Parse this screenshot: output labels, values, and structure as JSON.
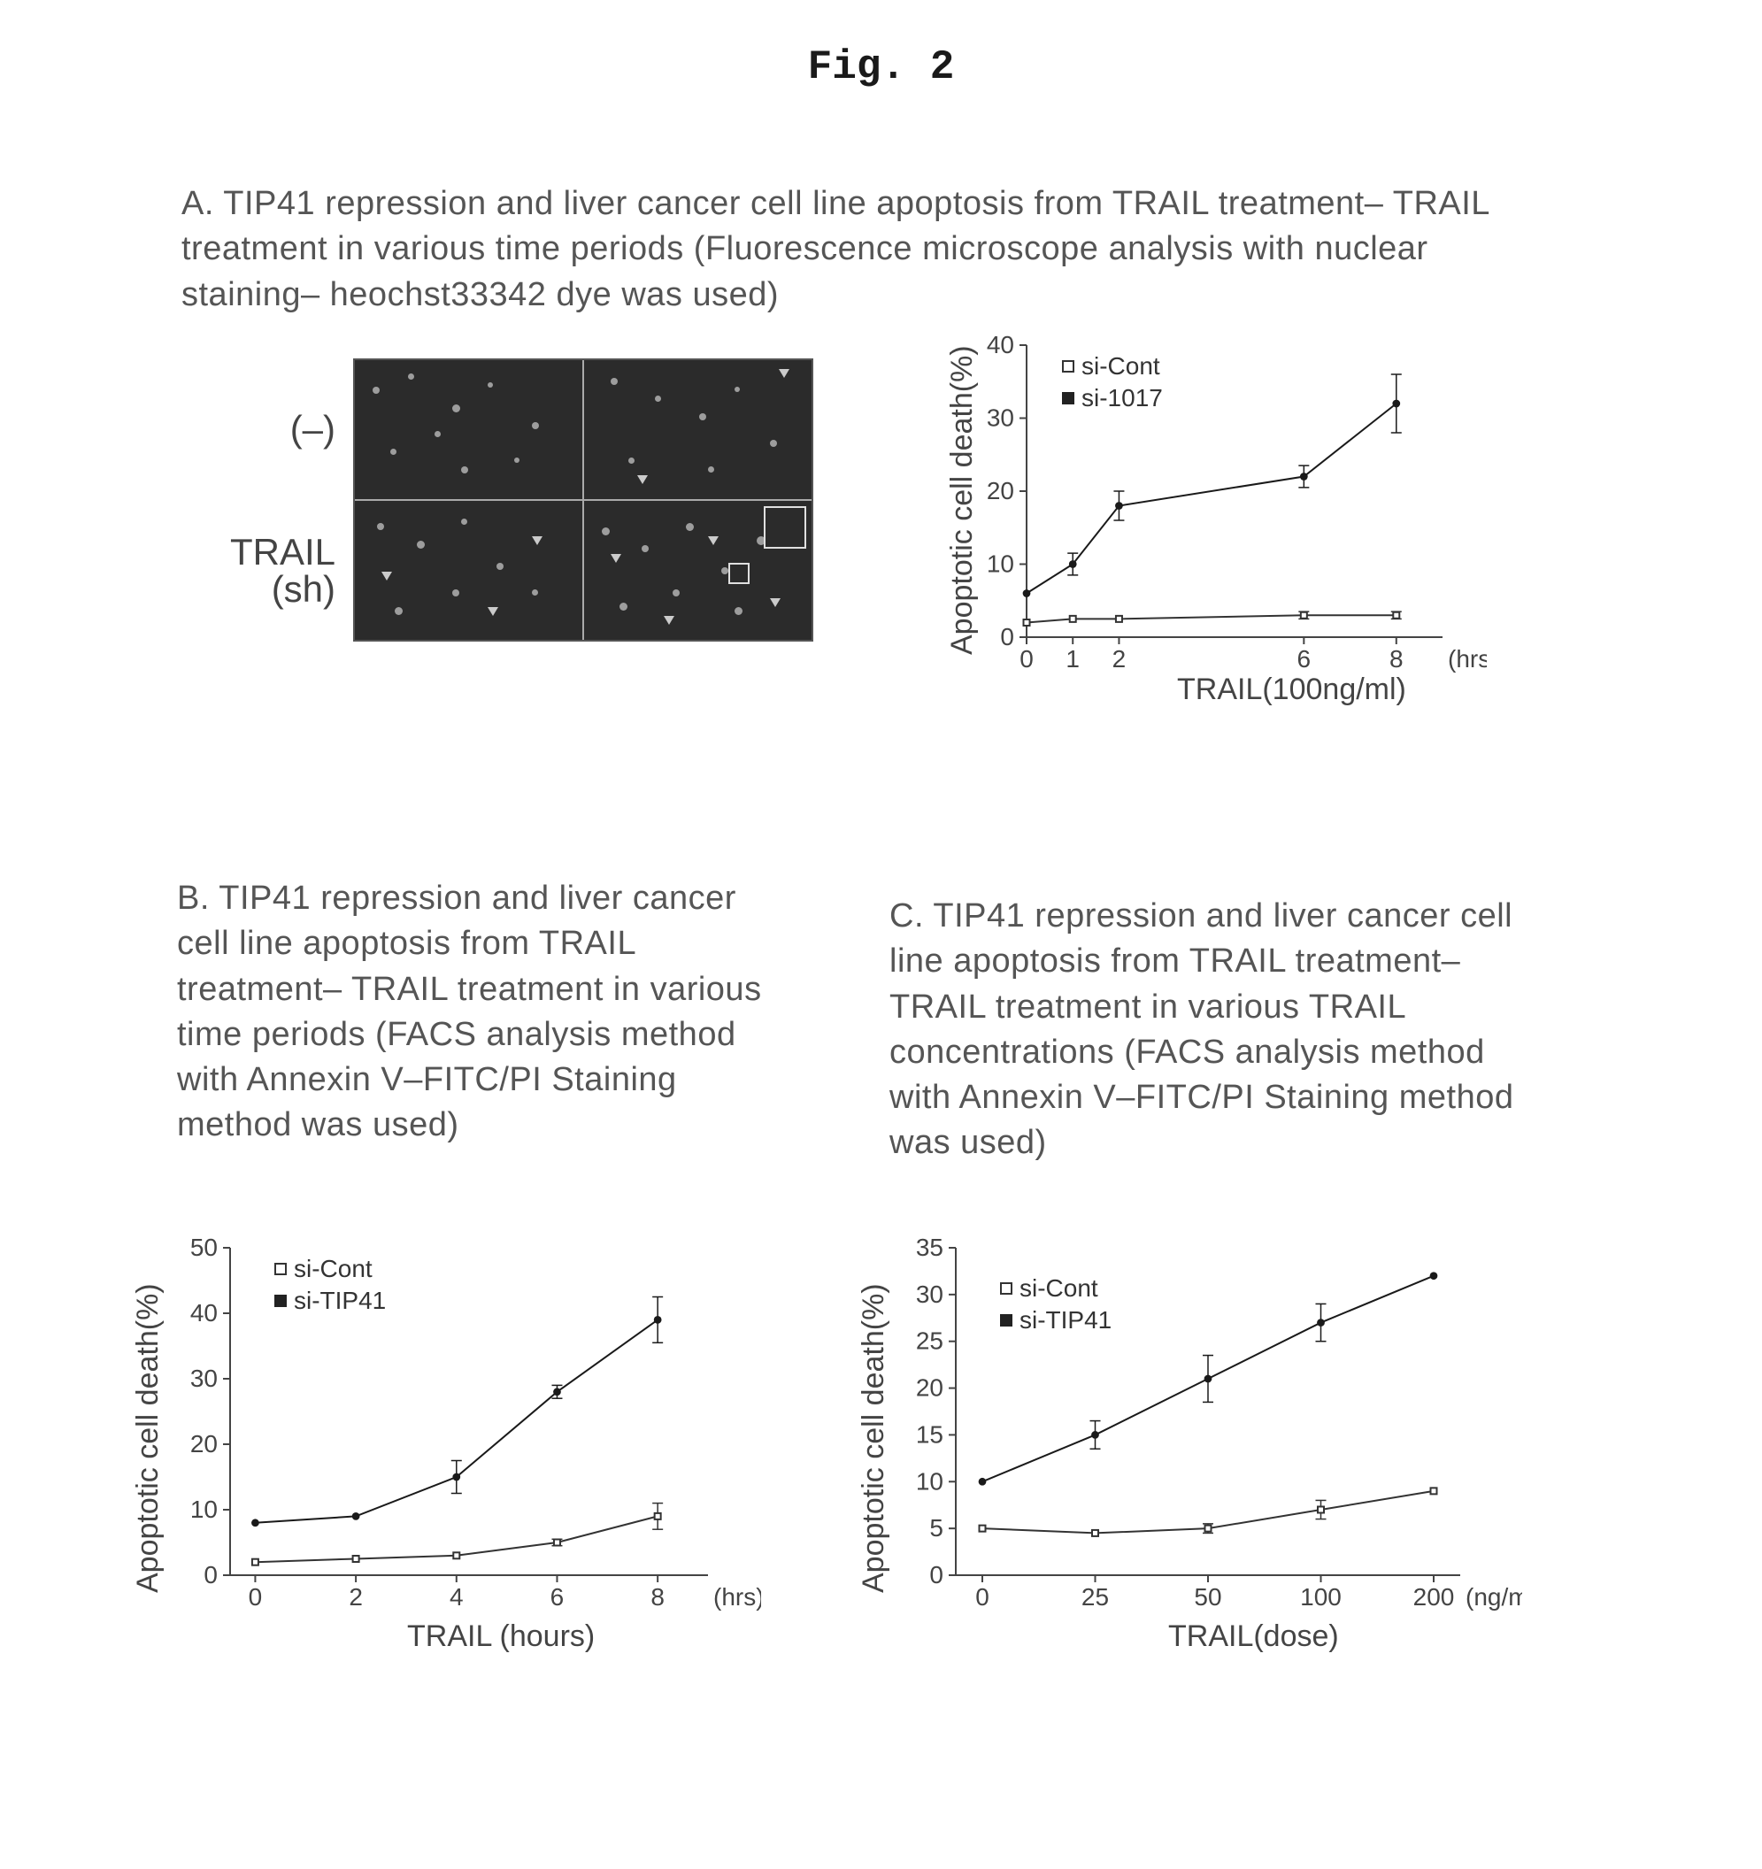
{
  "title": "Fig. 2",
  "panelA": {
    "caption": "A. TIP41 repression and liver cancer cell line apoptosis from TRAIL treatment– TRAIL treatment in various time periods (Fluorescence microscope analysis with nuclear staining– heochst33342 dye was used)",
    "row_label_top": "(–)",
    "row_label_bottom_line1": "TRAIL",
    "row_label_bottom_line2": "(sh)",
    "micro_bg": "#2b2b2b",
    "speck_color": "#cfcfcf",
    "chart": {
      "type": "line",
      "ylabel": "Apoptotic cell death(%)",
      "xlabel": "TRAIL(100ng/ml)",
      "x_unit": "(hrs)",
      "x_ticks": [
        0,
        1,
        2,
        6,
        8
      ],
      "y_ticks": [
        0,
        10,
        20,
        30,
        40
      ],
      "ylim": [
        0,
        40
      ],
      "xlim": [
        0,
        9
      ],
      "series": [
        {
          "name": "si-Cont",
          "marker": "open",
          "color": "#333333",
          "x": [
            0,
            1,
            2,
            6,
            8
          ],
          "y": [
            2,
            2.5,
            2.5,
            3,
            3
          ],
          "err": [
            0,
            0,
            0,
            0.5,
            0.5
          ]
        },
        {
          "name": "si-1017",
          "marker": "filled",
          "color": "#1a1a1a",
          "x": [
            0,
            1,
            2,
            6,
            8
          ],
          "y": [
            6,
            10,
            18,
            22,
            32
          ],
          "err": [
            0,
            1.5,
            2,
            1.5,
            4
          ]
        }
      ],
      "legend_labels": [
        "si-Cont",
        "si-1017"
      ],
      "axis_color": "#444444",
      "grid": false,
      "line_width": 2,
      "marker_size": 7,
      "font_size_ticks": 28,
      "font_size_label": 34
    }
  },
  "panelB": {
    "caption": "B. TIP41 repression and liver cancer cell line apoptosis from TRAIL treatment– TRAIL treatment in various time periods (FACS analysis method with Annexin V–FITC/PI Staining method was used)",
    "chart": {
      "type": "line",
      "ylabel": "Apoptotic cell death(%)",
      "xlabel": "TRAIL (hours)",
      "x_unit": "(hrs)",
      "x_ticks": [
        0,
        2,
        4,
        6,
        8
      ],
      "y_ticks": [
        0,
        10,
        20,
        30,
        40,
        50
      ],
      "ylim": [
        0,
        50
      ],
      "xlim": [
        -0.5,
        9
      ],
      "series": [
        {
          "name": "si-Cont",
          "marker": "open",
          "color": "#333333",
          "x": [
            0,
            2,
            4,
            6,
            8
          ],
          "y": [
            2,
            2.5,
            3,
            5,
            9
          ],
          "err": [
            0,
            0,
            0,
            0.5,
            2
          ]
        },
        {
          "name": "si-TIP41",
          "marker": "filled",
          "color": "#1a1a1a",
          "x": [
            0,
            2,
            4,
            6,
            8
          ],
          "y": [
            8,
            9,
            15,
            28,
            39
          ],
          "err": [
            0,
            0,
            2.5,
            1,
            3.5
          ]
        }
      ],
      "legend_labels": [
        "si-Cont",
        "si-TIP41"
      ],
      "axis_color": "#444444",
      "line_width": 2,
      "marker_size": 7
    }
  },
  "panelC": {
    "caption": "C. TIP41 repression and liver cancer cell line apoptosis from TRAIL treatment– TRAIL treatment in various TRAIL concentrations (FACS analysis method with Annexin V–FITC/PI Staining method was used)",
    "chart": {
      "type": "line",
      "ylabel": "Apoptotic cell death(%)",
      "xlabel": "TRAIL(dose)",
      "x_unit": "(ng/ml)",
      "x_ticks": [
        0,
        25,
        50,
        100,
        200
      ],
      "y_ticks": [
        0,
        5,
        10,
        15,
        20,
        25,
        30,
        35
      ],
      "ylim": [
        0,
        35
      ],
      "xlim_index": [
        0,
        4.5
      ],
      "series": [
        {
          "name": "si-Cont",
          "marker": "open",
          "color": "#333333",
          "x_idx": [
            0,
            1,
            2,
            3,
            4
          ],
          "y": [
            5,
            4.5,
            5,
            7,
            9
          ],
          "err": [
            0,
            0,
            0.5,
            1,
            0
          ]
        },
        {
          "name": "si-TIP41",
          "marker": "filled",
          "color": "#1a1a1a",
          "x_idx": [
            0,
            1,
            2,
            3,
            4
          ],
          "y": [
            10,
            15,
            21,
            27,
            32
          ],
          "err": [
            0,
            1.5,
            2.5,
            2,
            0
          ]
        }
      ],
      "legend_labels": [
        "si-Cont",
        "si-TIP41"
      ],
      "axis_color": "#444444",
      "line_width": 2,
      "marker_size": 7
    }
  },
  "colors": {
    "background": "#ffffff",
    "text": "#555555",
    "axis": "#444444"
  }
}
